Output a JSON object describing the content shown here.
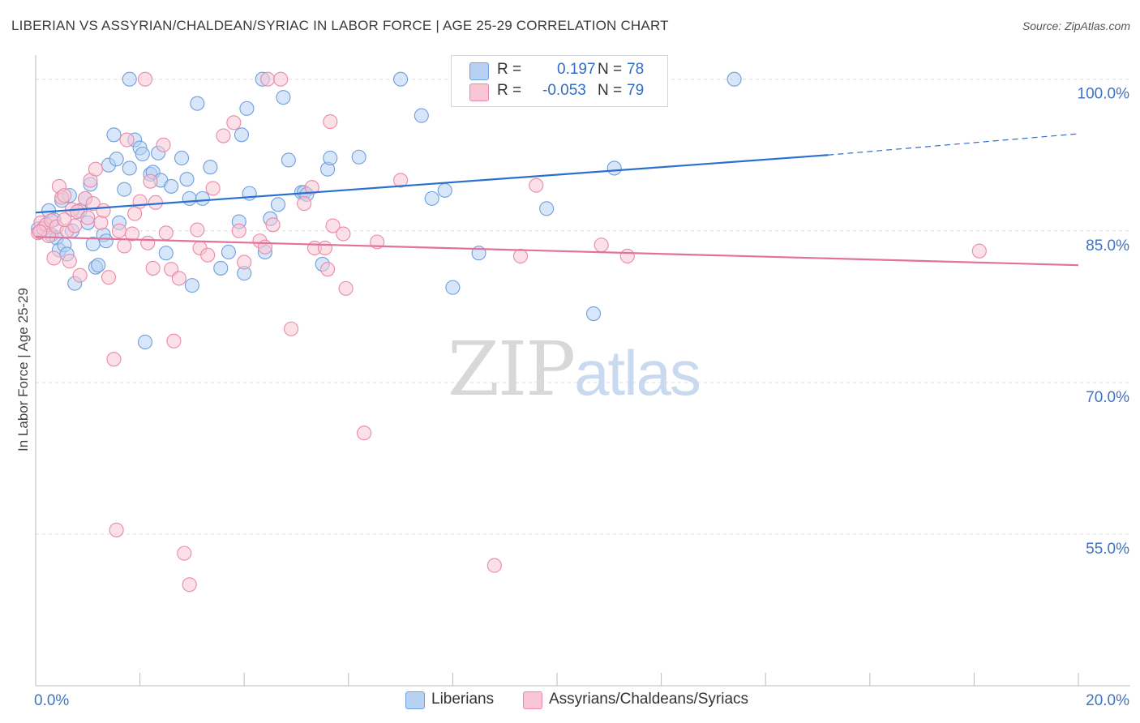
{
  "header": {
    "title": "LIBERIAN VS ASSYRIAN/CHALDEAN/SYRIAC IN LABOR FORCE | AGE 25-29 CORRELATION CHART",
    "source": "Source: ZipAtlas.com"
  },
  "watermark": {
    "zip": "ZIP",
    "atlas": "atlas"
  },
  "legend": {
    "rows": [
      {
        "r_label": "R =",
        "r_value": "0.197",
        "n_label": "N =",
        "n_value": "78"
      },
      {
        "r_label": "R =",
        "r_value": "-0.053",
        "n_label": "N =",
        "n_value": "79"
      }
    ]
  },
  "bottom_legend": {
    "series1": "Liberians",
    "series2": "Assyrians/Chaldeans/Syriacs"
  },
  "colors": {
    "blue_fill": "#b7d1f3",
    "blue_stroke": "#6f9fdc",
    "blue_line": "#2b6fcf",
    "pink_fill": "#f8c6d5",
    "pink_stroke": "#e98aa8",
    "pink_line": "#e2729a",
    "tick_text": "#3f73c5",
    "grid": "#dddddd"
  },
  "chart_data": {
    "type": "scatter",
    "title": "LIBERIAN VS ASSYRIAN/CHALDEAN/SYRIAC IN LABOR FORCE | AGE 25-29 CORRELATION CHART",
    "xlabel": "",
    "ylabel": "In Labor Force | Age 25-29",
    "xlim": [
      0,
      20
    ],
    "ylim": [
      40,
      101.5
    ],
    "x_tick_labels": [
      "0.0%",
      "20.0%"
    ],
    "y_ticks": [
      55,
      70,
      85,
      100
    ],
    "y_tick_labels": [
      "55.0%",
      "70.0%",
      "85.0%",
      "100.0%"
    ],
    "grid": true,
    "series": [
      {
        "name": "Liberians",
        "color": "blue",
        "R": 0.197,
        "N": 78,
        "trend": {
          "x0": 0,
          "y0": 86.8,
          "x1": 15.2,
          "y1": 92.5,
          "dash_to_x": 20,
          "dash_to_y": 94.6
        },
        "points": [
          [
            0.1,
            85.0
          ],
          [
            0.15,
            85.3
          ],
          [
            0.2,
            85.6
          ],
          [
            0.25,
            87.0
          ],
          [
            0.3,
            84.6
          ],
          [
            0.35,
            86.1
          ],
          [
            0.4,
            84.3
          ],
          [
            0.45,
            83.1
          ],
          [
            0.5,
            88.0
          ],
          [
            0.55,
            83.6
          ],
          [
            0.6,
            82.7
          ],
          [
            0.65,
            88.5
          ],
          [
            0.7,
            85.0
          ],
          [
            0.75,
            79.8
          ],
          [
            0.85,
            87.0
          ],
          [
            0.95,
            88.2
          ],
          [
            1.0,
            85.8
          ],
          [
            1.05,
            89.6
          ],
          [
            1.1,
            83.7
          ],
          [
            1.15,
            81.4
          ],
          [
            1.2,
            81.6
          ],
          [
            1.3,
            84.6
          ],
          [
            1.35,
            84.0
          ],
          [
            1.4,
            91.5
          ],
          [
            1.5,
            94.5
          ],
          [
            1.55,
            92.1
          ],
          [
            1.6,
            85.8
          ],
          [
            1.7,
            89.1
          ],
          [
            1.8,
            91.2
          ],
          [
            1.8,
            100.0
          ],
          [
            1.9,
            94.0
          ],
          [
            2.0,
            93.2
          ],
          [
            2.05,
            92.6
          ],
          [
            2.1,
            74.0
          ],
          [
            2.2,
            90.6
          ],
          [
            2.25,
            90.8
          ],
          [
            2.35,
            92.7
          ],
          [
            2.4,
            90.0
          ],
          [
            2.5,
            82.8
          ],
          [
            2.6,
            89.4
          ],
          [
            2.8,
            92.2
          ],
          [
            2.9,
            90.1
          ],
          [
            2.95,
            88.2
          ],
          [
            3.0,
            79.6
          ],
          [
            3.1,
            97.6
          ],
          [
            3.2,
            88.2
          ],
          [
            3.35,
            91.3
          ],
          [
            3.55,
            81.3
          ],
          [
            3.7,
            82.9
          ],
          [
            3.9,
            85.9
          ],
          [
            3.95,
            94.5
          ],
          [
            4.0,
            80.8
          ],
          [
            4.05,
            97.1
          ],
          [
            4.1,
            88.7
          ],
          [
            4.35,
            100.0
          ],
          [
            4.4,
            82.9
          ],
          [
            4.5,
            86.2
          ],
          [
            4.65,
            87.6
          ],
          [
            4.75,
            98.2
          ],
          [
            4.85,
            92.0
          ],
          [
            5.1,
            88.8
          ],
          [
            5.15,
            88.8
          ],
          [
            5.2,
            88.6
          ],
          [
            5.5,
            81.7
          ],
          [
            5.6,
            91.1
          ],
          [
            5.65,
            92.2
          ],
          [
            6.2,
            92.3
          ],
          [
            7.0,
            100.0
          ],
          [
            7.4,
            96.4
          ],
          [
            7.6,
            88.2
          ],
          [
            7.85,
            89.0
          ],
          [
            8.0,
            79.4
          ],
          [
            8.5,
            82.8
          ],
          [
            9.8,
            87.2
          ],
          [
            10.7,
            76.8
          ],
          [
            11.1,
            91.2
          ],
          [
            13.4,
            100.0
          ],
          [
            0.05,
            85.2
          ]
        ]
      },
      {
        "name": "Assyrians/Chaldeans/Syriacs",
        "color": "pink",
        "R": -0.053,
        "N": 79,
        "trend": {
          "x0": 0,
          "y0": 84.4,
          "x1": 20,
          "y1": 81.6
        },
        "points": [
          [
            0.05,
            84.8
          ],
          [
            0.1,
            85.8
          ],
          [
            0.15,
            85.2
          ],
          [
            0.2,
            85.6
          ],
          [
            0.25,
            84.5
          ],
          [
            0.3,
            86.0
          ],
          [
            0.35,
            82.3
          ],
          [
            0.4,
            85.4
          ],
          [
            0.45,
            89.4
          ],
          [
            0.5,
            88.3
          ],
          [
            0.55,
            88.5
          ],
          [
            0.6,
            85.0
          ],
          [
            0.65,
            82.0
          ],
          [
            0.7,
            87.1
          ],
          [
            0.75,
            85.5
          ],
          [
            0.8,
            86.9
          ],
          [
            0.85,
            80.6
          ],
          [
            0.95,
            88.2
          ],
          [
            1.0,
            86.3
          ],
          [
            1.05,
            90.0
          ],
          [
            1.1,
            87.7
          ],
          [
            1.15,
            91.1
          ],
          [
            1.25,
            85.8
          ],
          [
            1.3,
            87.0
          ],
          [
            1.4,
            80.4
          ],
          [
            1.5,
            72.3
          ],
          [
            1.55,
            55.4
          ],
          [
            1.6,
            85.0
          ],
          [
            1.7,
            83.5
          ],
          [
            1.75,
            94.0
          ],
          [
            1.85,
            84.7
          ],
          [
            1.9,
            86.7
          ],
          [
            2.0,
            87.9
          ],
          [
            2.1,
            100.0
          ],
          [
            2.15,
            83.8
          ],
          [
            2.2,
            89.9
          ],
          [
            2.25,
            81.3
          ],
          [
            2.3,
            87.8
          ],
          [
            2.45,
            93.5
          ],
          [
            2.5,
            84.8
          ],
          [
            2.6,
            81.2
          ],
          [
            2.65,
            74.1
          ],
          [
            2.75,
            80.3
          ],
          [
            2.85,
            53.1
          ],
          [
            2.95,
            50.0
          ],
          [
            3.1,
            85.1
          ],
          [
            3.15,
            83.3
          ],
          [
            3.3,
            82.6
          ],
          [
            3.4,
            89.2
          ],
          [
            3.6,
            94.4
          ],
          [
            3.8,
            95.7
          ],
          [
            3.9,
            85.0
          ],
          [
            4.0,
            81.9
          ],
          [
            4.3,
            84.0
          ],
          [
            4.4,
            83.4
          ],
          [
            4.45,
            100.0
          ],
          [
            4.55,
            85.6
          ],
          [
            4.7,
            100.0
          ],
          [
            4.9,
            75.3
          ],
          [
            5.15,
            87.7
          ],
          [
            5.3,
            89.3
          ],
          [
            5.35,
            83.3
          ],
          [
            5.55,
            83.3
          ],
          [
            5.6,
            81.2
          ],
          [
            5.65,
            95.8
          ],
          [
            5.7,
            85.5
          ],
          [
            5.9,
            84.7
          ],
          [
            5.95,
            79.3
          ],
          [
            6.3,
            65.0
          ],
          [
            6.55,
            83.9
          ],
          [
            7.0,
            90.0
          ],
          [
            8.8,
            51.9
          ],
          [
            9.3,
            82.5
          ],
          [
            9.6,
            89.5
          ],
          [
            10.85,
            83.6
          ],
          [
            11.35,
            82.5
          ],
          [
            18.1,
            83.0
          ],
          [
            0.08,
            84.9
          ],
          [
            0.55,
            86.1
          ]
        ]
      }
    ]
  }
}
